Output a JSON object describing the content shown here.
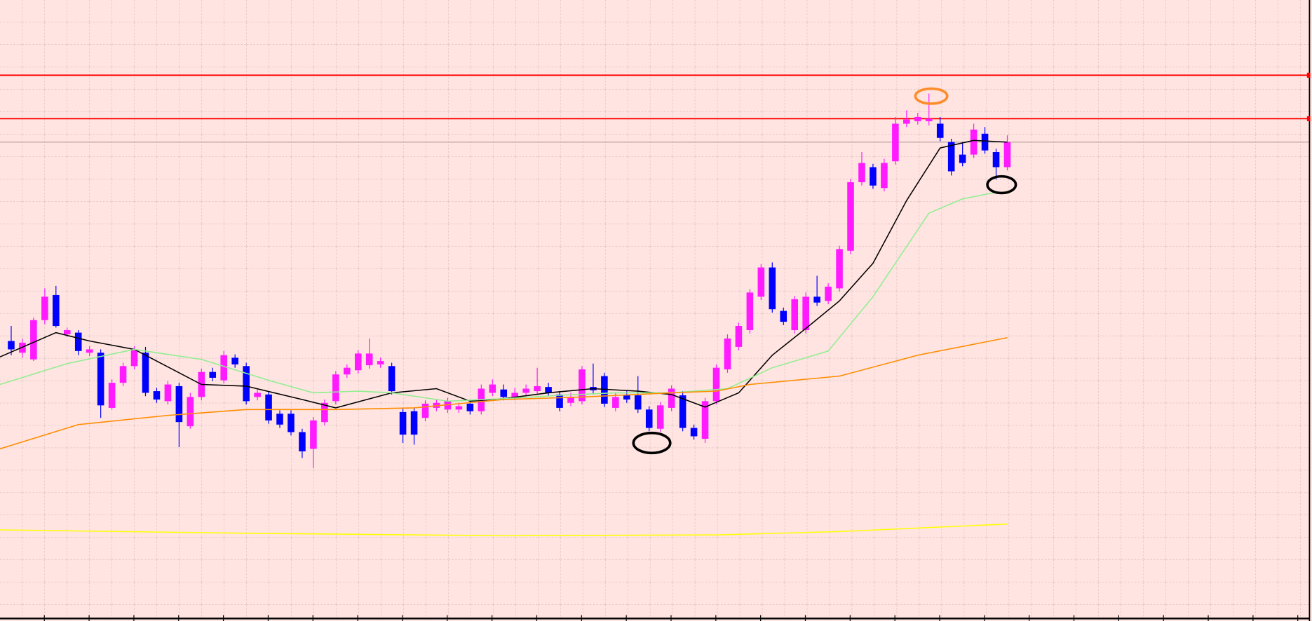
{
  "chart_data": {
    "type": "candlestick",
    "up_color": "#ff1aff",
    "down_color": "#0000ff",
    "xlim": [
      -1,
      116
    ],
    "ylim": [
      -3,
      740
    ],
    "open": [
      332,
      318,
      310,
      357,
      387,
      340,
      342,
      318,
      318,
      252,
      282,
      302,
      318,
      272,
      260,
      278,
      230,
      265,
      295,
      285,
      312,
      302,
      265,
      268,
      245,
      245,
      223,
      203,
      235,
      260,
      292,
      297,
      303,
      304,
      302,
      247,
      248,
      240,
      252,
      250,
      250,
      257,
      248,
      270,
      274,
      265,
      270,
      272,
      277,
      268,
      258,
      260,
      277,
      290,
      252,
      267,
      267,
      250,
      227,
      252,
      267,
      228,
      215,
      260,
      298,
      325,
      345,
      385,
      420,
      368,
      345,
      345,
      385,
      380,
      395,
      440,
      522,
      540,
      515,
      547,
      592,
      595,
      595,
      592,
      570,
      555,
      555,
      580,
      558,
      540
    ],
    "high": [
      350,
      335,
      360,
      395,
      398,
      348,
      345,
      326,
      322,
      286,
      306,
      326,
      325,
      276,
      284,
      282,
      270,
      299,
      300,
      320,
      316,
      306,
      274,
      272,
      249,
      249,
      227,
      241,
      262,
      296,
      304,
      321,
      335,
      312,
      306,
      251,
      252,
      261,
      262,
      264,
      258,
      262,
      280,
      286,
      280,
      276,
      280,
      300,
      282,
      272,
      270,
      302,
      305,
      294,
      270,
      272,
      290,
      254,
      259,
      279,
      272,
      232,
      264,
      304,
      340,
      354,
      394,
      424,
      426,
      372,
      386,
      390,
      410,
      401,
      446,
      526,
      558,
      544,
      550,
      600,
      608,
      605,
      628,
      600,
      574,
      570,
      592,
      588,
      562,
      578
    ],
    "low": [
      315,
      312,
      308,
      352,
      348,
      337,
      315,
      314,
      240,
      250,
      278,
      298,
      266,
      258,
      256,
      205,
      227,
      261,
      284,
      281,
      300,
      256,
      261,
      233,
      228,
      219,
      192,
      180,
      231,
      256,
      288,
      293,
      299,
      300,
      268,
      210,
      208,
      236,
      248,
      246,
      246,
      244,
      244,
      266,
      261,
      261,
      266,
      268,
      266,
      248,
      254,
      256,
      268,
      253,
      248,
      258,
      246,
      224,
      223,
      248,
      224,
      214,
      210,
      256,
      294,
      321,
      341,
      381,
      366,
      351,
      341,
      341,
      374,
      376,
      391,
      436,
      518,
      514,
      511,
      543,
      588,
      591,
      590,
      571,
      530,
      541,
      551,
      556,
      525,
      536
    ],
    "close": [
      322,
      330,
      357,
      385,
      350,
      345,
      320,
      322,
      255,
      282,
      302,
      322,
      270,
      262,
      280,
      235,
      265,
      295,
      288,
      315,
      304,
      260,
      270,
      237,
      232,
      223,
      200,
      237,
      258,
      292,
      300,
      317,
      317,
      308,
      272,
      220,
      220,
      257,
      258,
      260,
      254,
      248,
      275,
      280,
      265,
      270,
      275,
      278,
      270,
      252,
      265,
      298,
      273,
      257,
      265,
      262,
      250,
      228,
      255,
      275,
      228,
      218,
      260,
      300,
      335,
      350,
      390,
      420,
      370,
      355,
      382,
      385,
      378,
      397,
      442,
      522,
      545,
      518,
      545,
      592,
      597,
      600,
      598,
      575,
      535,
      545,
      585,
      560,
      540,
      570
    ],
    "lines": [
      {
        "color": "#000000",
        "x": [
          -1,
          4,
          7,
          11,
          17,
          21,
          26,
          29,
          34,
          38,
          41,
          44,
          48,
          52,
          56,
          59,
          62,
          65,
          68,
          71,
          74,
          77,
          80,
          83,
          86,
          89
        ],
        "values": [
          313,
          342,
          332,
          322,
          280,
          278,
          262,
          252,
          270,
          275,
          260,
          263,
          270,
          275,
          272,
          268,
          253,
          270,
          315,
          347,
          380,
          425,
          500,
          563,
          572,
          570
        ]
      },
      {
        "color": "#90ee90",
        "x": [
          -1,
          5,
          11,
          17,
          23,
          27,
          31,
          34,
          39,
          44,
          49,
          54,
          59,
          64,
          68,
          73,
          77,
          79,
          82,
          85,
          88
        ],
        "values": [
          280,
          305,
          322,
          310,
          285,
          270,
          272,
          270,
          260,
          263,
          267,
          270,
          270,
          275,
          300,
          320,
          385,
          425,
          485,
          502,
          510
        ]
      },
      {
        "color": "#ff8c00",
        "x": [
          -1,
          6,
          14,
          21,
          29,
          36,
          44,
          51,
          59,
          63,
          66,
          74,
          81,
          89
        ],
        "values": [
          203,
          232,
          243,
          250,
          250,
          252,
          262,
          265,
          270,
          272,
          280,
          290,
          315,
          336
        ]
      },
      {
        "color": "#ffff00",
        "x": [
          -1,
          21,
          44,
          63,
          74,
          89
        ],
        "values": [
          106,
          102,
          99,
          100,
          104,
          113
        ]
      }
    ],
    "levels": {
      "color": "#ff0000",
      "values": [
        650,
        598
      ]
    }
  }
}
